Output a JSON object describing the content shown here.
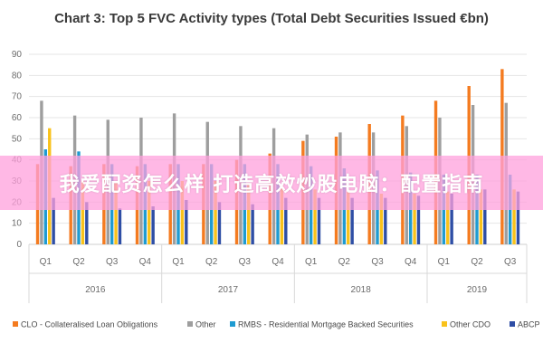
{
  "chart_data": {
    "type": "bar",
    "title": "Chart 3: Top 5 FVC Activity types (Total Debt Securities Issued €bn)",
    "ylim": [
      0,
      90
    ],
    "yticks": [
      0,
      10,
      20,
      30,
      40,
      50,
      60,
      70,
      80,
      90
    ],
    "grid": true,
    "legend_position": "bottom",
    "categories": [
      "Q1",
      "Q2",
      "Q3",
      "Q4",
      "Q1",
      "Q2",
      "Q3",
      "Q4",
      "Q1",
      "Q2",
      "Q3",
      "Q4",
      "Q1",
      "Q2",
      "Q3"
    ],
    "years": [
      {
        "label": "2016",
        "quarters": 4
      },
      {
        "label": "2017",
        "quarters": 4
      },
      {
        "label": "2018",
        "quarters": 4
      },
      {
        "label": "2019",
        "quarters": 3
      }
    ],
    "series": [
      {
        "name": "CLO - Collateralised Loan Obligations",
        "color": "#f47b20",
        "values": [
          38,
          37,
          38,
          37,
          38,
          38,
          40,
          43,
          49,
          51,
          57,
          61,
          68,
          75,
          83
        ]
      },
      {
        "name": "Other",
        "color": "#9e9e9e",
        "values": [
          68,
          61,
          59,
          60,
          62,
          58,
          56,
          55,
          52,
          53,
          53,
          56,
          60,
          66,
          67
        ]
      },
      {
        "name": "RMBS - Residential Mortgage Backed Securities",
        "color": "#1f9bd1",
        "values": [
          45,
          44,
          38,
          38,
          38,
          38,
          38,
          38,
          37,
          36,
          35,
          34,
          33,
          33,
          33
        ]
      },
      {
        "name": "Other CDO",
        "color": "#f9c21b",
        "values": [
          55,
          30,
          30,
          30,
          30,
          30,
          29,
          28,
          26,
          25,
          24,
          24,
          25,
          26,
          26
        ]
      },
      {
        "name": "ABCP",
        "color": "#2e4ea5",
        "values": [
          22,
          20,
          17,
          18,
          21,
          20,
          19,
          22,
          22,
          22,
          22,
          23,
          24,
          26,
          25
        ]
      }
    ]
  },
  "banner": {
    "text": "我爱配资怎么样 打造高效炒股电脑：配置指南"
  }
}
